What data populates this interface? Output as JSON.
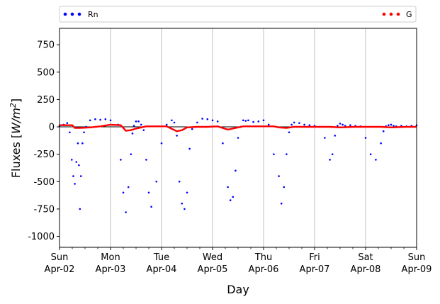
{
  "chart_data": {
    "type": "scatter",
    "xlabel": "Day",
    "ylabel": "Fluxes [W/m²]",
    "ylabel_main": "Fluxes [",
    "ylabel_unit": "W/m",
    "ylabel_sup": "2",
    "ylabel_close": "]",
    "xlim": [
      0,
      7
    ],
    "ylim": [
      -1100,
      900
    ],
    "grid": "vertical lines at day ticks",
    "legend": "top, above plot, spanning width",
    "x_ticks": [
      {
        "x": 0,
        "day": "Sun",
        "date": "Apr-02"
      },
      {
        "x": 1,
        "day": "Mon",
        "date": "Apr-03"
      },
      {
        "x": 2,
        "day": "Tue",
        "date": "Apr-04"
      },
      {
        "x": 3,
        "day": "Wed",
        "date": "Apr-05"
      },
      {
        "x": 4,
        "day": "Thu",
        "date": "Apr-06"
      },
      {
        "x": 5,
        "day": "Fri",
        "date": "Apr-07"
      },
      {
        "x": 6,
        "day": "Sat",
        "date": "Apr-08"
      },
      {
        "x": 7,
        "day": "Sun",
        "date": "Apr-09"
      }
    ],
    "y_ticks": [
      750,
      500,
      250,
      0,
      -250,
      -500,
      -750,
      -1000
    ],
    "zero_line": true,
    "series": [
      {
        "name": "Rn",
        "color": "#0000ff",
        "style": "dots",
        "x": [
          0.0,
          0.08,
          0.15,
          0.2,
          0.24,
          0.27,
          0.3,
          0.33,
          0.36,
          0.38,
          0.4,
          0.42,
          0.45,
          0.48,
          0.52,
          0.6,
          0.7,
          0.8,
          0.9,
          1.0,
          1.15,
          1.2,
          1.25,
          1.3,
          1.35,
          1.4,
          1.43,
          1.46,
          1.5,
          1.55,
          1.6,
          1.65,
          1.7,
          1.75,
          1.8,
          1.9,
          2.0,
          2.1,
          2.2,
          2.25,
          2.3,
          2.35,
          2.4,
          2.45,
          2.5,
          2.55,
          2.6,
          2.7,
          2.8,
          2.9,
          3.0,
          3.1,
          3.2,
          3.3,
          3.35,
          3.4,
          3.45,
          3.5,
          3.55,
          3.6,
          3.65,
          3.7,
          3.8,
          3.9,
          4.0,
          4.1,
          4.2,
          4.3,
          4.35,
          4.4,
          4.45,
          4.5,
          4.55,
          4.6,
          4.7,
          4.8,
          4.9,
          5.0,
          5.1,
          5.2,
          5.3,
          5.35,
          5.4,
          5.45,
          5.5,
          5.55,
          5.6,
          5.7,
          5.8,
          5.9,
          6.0,
          6.1,
          6.2,
          6.3,
          6.35,
          6.4,
          6.45,
          6.5,
          6.55,
          6.6,
          6.7,
          6.8,
          6.9,
          7.0
        ],
        "y": [
          10,
          20,
          35,
          -50,
          -300,
          -450,
          -520,
          -320,
          -150,
          -350,
          -750,
          -450,
          -150,
          -50,
          0,
          60,
          70,
          65,
          70,
          60,
          20,
          -300,
          -600,
          -780,
          -550,
          -250,
          -60,
          10,
          50,
          50,
          20,
          -30,
          -300,
          -600,
          -730,
          -500,
          -150,
          20,
          60,
          40,
          -80,
          -500,
          -700,
          -750,
          -600,
          -200,
          -20,
          40,
          75,
          70,
          60,
          50,
          -150,
          -550,
          -670,
          -640,
          -400,
          -100,
          0,
          60,
          55,
          60,
          45,
          50,
          60,
          20,
          -250,
          -450,
          -700,
          -550,
          -250,
          -50,
          20,
          40,
          35,
          20,
          15,
          10,
          0,
          -100,
          -300,
          -250,
          -80,
          10,
          30,
          20,
          10,
          15,
          10,
          5,
          -100,
          -250,
          -300,
          -150,
          -40,
          5,
          15,
          20,
          10,
          5,
          10,
          5,
          10,
          15
        ]
      },
      {
        "name": "G",
        "color": "#ff0000",
        "style": "line",
        "x": [
          0,
          0.25,
          0.3,
          0.4,
          0.6,
          0.8,
          1.0,
          1.2,
          1.3,
          1.4,
          1.5,
          1.7,
          1.9,
          2.1,
          2.3,
          2.4,
          2.5,
          2.7,
          2.9,
          3.1,
          3.3,
          3.45,
          3.6,
          3.8,
          4.0,
          4.2,
          4.3,
          4.45,
          4.6,
          4.8,
          5.0,
          5.3,
          5.5,
          5.8,
          6.0,
          6.3,
          6.5,
          6.8,
          7.0
        ],
        "y": [
          15,
          15,
          -10,
          -10,
          -5,
          5,
          20,
          15,
          -35,
          -30,
          -15,
          5,
          5,
          5,
          -40,
          -30,
          -5,
          0,
          0,
          5,
          -25,
          -10,
          5,
          5,
          5,
          5,
          -5,
          -10,
          0,
          0,
          0,
          0,
          -5,
          0,
          0,
          0,
          -5,
          0,
          0
        ]
      }
    ]
  }
}
